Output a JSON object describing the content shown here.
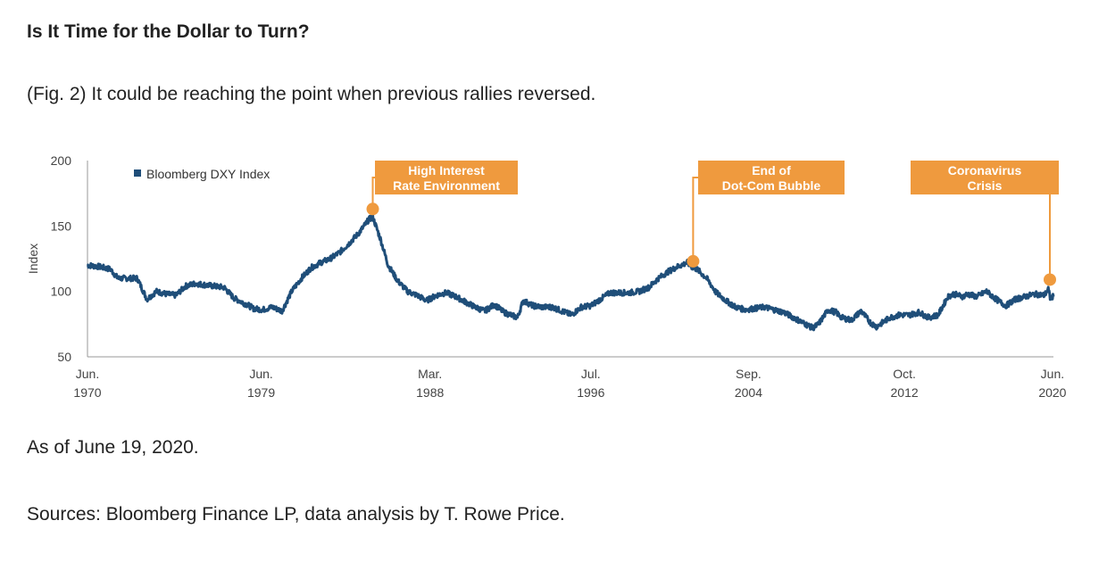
{
  "page": {
    "title": "Is It Time for the Dollar to Turn?",
    "subtitle": "(Fig. 2) It could be reaching the point when previous rallies reversed.",
    "note": "As of June 19, 2020.",
    "sources": "Sources: Bloomberg Finance LP, data analysis by T. Rowe Price."
  },
  "colors": {
    "line": "#1f4e79",
    "accent": "#ef9a3e",
    "axis": "#999999"
  },
  "chart_data": {
    "type": "line",
    "title": "Is It Time for the Dollar to Turn?",
    "xlabel": "",
    "ylabel": "Index",
    "ylim": [
      50,
      200
    ],
    "yticks": [
      50,
      100,
      150,
      200
    ],
    "xlim": [
      1970.42,
      2020.47
    ],
    "xticks": [
      {
        "value": 1970.42,
        "line1": "Jun.",
        "line2": "1970"
      },
      {
        "value": 1979.42,
        "line1": "Jun.",
        "line2": "1979"
      },
      {
        "value": 1988.17,
        "line1": "Mar.",
        "line2": "1988"
      },
      {
        "value": 1996.5,
        "line1": "Jul.",
        "line2": "1996"
      },
      {
        "value": 2004.67,
        "line1": "Sep.",
        "line2": "2004"
      },
      {
        "value": 2012.75,
        "line1": "Oct.",
        "line2": "2012"
      },
      {
        "value": 2020.42,
        "line1": "Jun.",
        "line2": "2020"
      }
    ],
    "legend": "Bloomberg DXY Index",
    "legend_position": "top-left",
    "series": [
      {
        "name": "Bloomberg DXY Index",
        "x": [
          1970.42,
          1971.0,
          1971.6,
          1972.0,
          1973.0,
          1973.5,
          1974.0,
          1974.5,
          1975.0,
          1975.5,
          1976.0,
          1976.5,
          1977.0,
          1977.5,
          1978.0,
          1978.8,
          1979.0,
          1979.5,
          1980.0,
          1980.5,
          1981.0,
          1981.5,
          1982.0,
          1982.5,
          1983.0,
          1983.5,
          1984.0,
          1984.5,
          1985.0,
          1985.2,
          1985.6,
          1986.0,
          1986.5,
          1987.0,
          1987.5,
          1988.0,
          1988.5,
          1989.0,
          1989.5,
          1990.0,
          1990.5,
          1991.0,
          1991.5,
          1992.0,
          1992.7,
          1993.0,
          1993.5,
          1994.0,
          1994.5,
          1995.0,
          1995.5,
          1996.0,
          1996.5,
          1997.0,
          1997.5,
          1998.0,
          1998.5,
          1999.0,
          1999.5,
          2000.0,
          2000.5,
          2001.0,
          2001.5,
          2001.8,
          2002.0,
          2002.5,
          2003.0,
          2003.5,
          2004.0,
          2004.5,
          2005.0,
          2005.5,
          2006.0,
          2006.5,
          2007.0,
          2007.5,
          2008.0,
          2008.3,
          2008.8,
          2009.2,
          2009.5,
          2010.0,
          2010.5,
          2011.0,
          2011.3,
          2011.8,
          2012.0,
          2012.5,
          2013.0,
          2013.5,
          2014.0,
          2014.5,
          2015.0,
          2015.3,
          2015.8,
          2016.0,
          2016.5,
          2017.0,
          2017.5,
          2018.0,
          2018.5,
          2019.0,
          2019.5,
          2020.0,
          2020.2,
          2020.3,
          2020.47
        ],
        "values": [
          120,
          119,
          117,
          110,
          110,
          94,
          100,
          98,
          97,
          104,
          106,
          105,
          104,
          103,
          95,
          89,
          87,
          86,
          88,
          85,
          100,
          110,
          118,
          122,
          125,
          130,
          137,
          145,
          155,
          157,
          140,
          120,
          108,
          100,
          97,
          93,
          97,
          99,
          96,
          92,
          88,
          85,
          90,
          84,
          80,
          93,
          89,
          88,
          88,
          85,
          82,
          88,
          89,
          94,
          99,
          99,
          99,
          100,
          103,
          110,
          115,
          119,
          122,
          118,
          117,
          110,
          99,
          93,
          88,
          86,
          87,
          88,
          86,
          84,
          80,
          76,
          72,
          75,
          86,
          84,
          80,
          78,
          85,
          76,
          73,
          78,
          80,
          82,
          82,
          84,
          80,
          82,
          96,
          98,
          96,
          98,
          96,
          100,
          94,
          89,
          94,
          96,
          98,
          97,
          102,
          95,
          96
        ]
      }
    ],
    "annotations": [
      {
        "line1": "High Interest",
        "line2": "Rate Environment",
        "x": 1985.2,
        "y": 163
      },
      {
        "line1": "End of",
        "line2": "Dot-Com Bubble",
        "x": 2001.8,
        "y": 123
      },
      {
        "line1": "Coronavirus",
        "line2": "Crisis",
        "x": 2020.3,
        "y": 109
      }
    ]
  }
}
